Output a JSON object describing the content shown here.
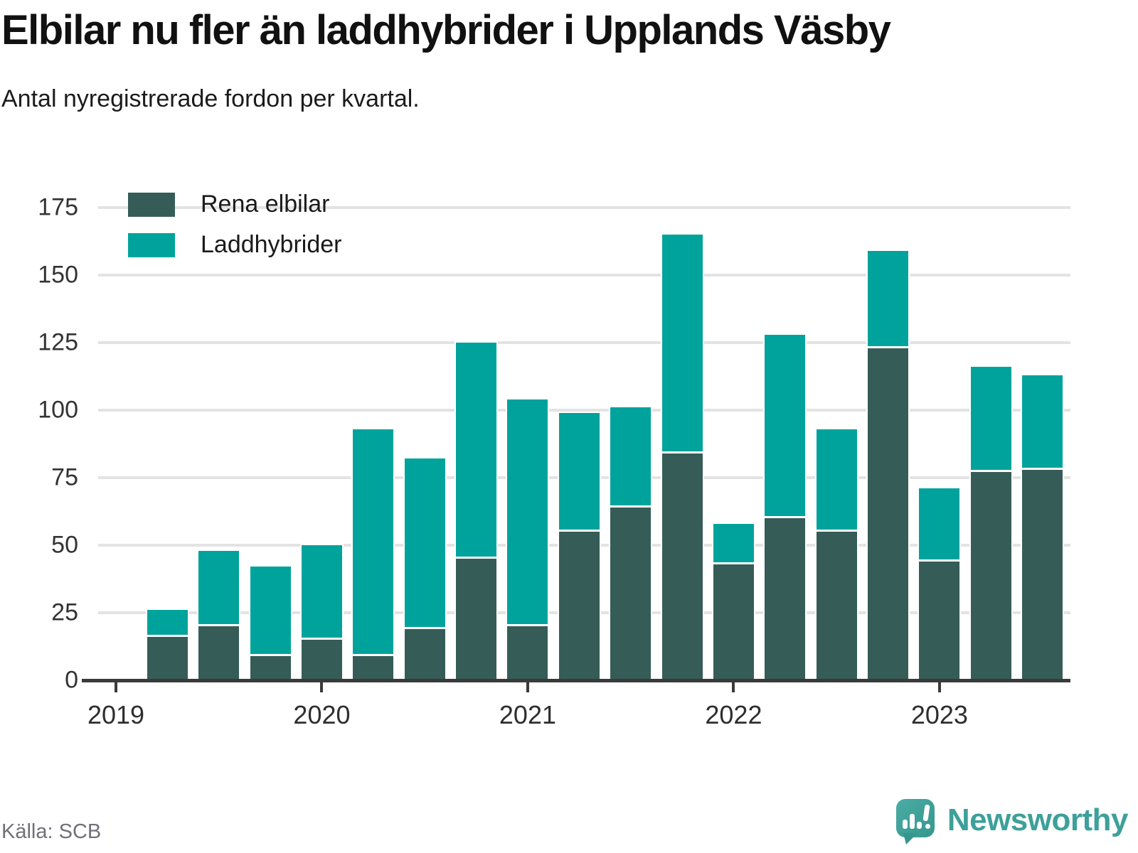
{
  "title": "Elbilar nu fler än laddhybrider i Upplands Väsby",
  "subtitle": "Antal nyregistrerade fordon per kvartal.",
  "source": "Källa: SCB",
  "brand": "Newsworthy",
  "colors": {
    "elbilar": "#365C57",
    "hybrider": "#00A39B",
    "axis": "#3a3a3a",
    "gridline": "#e3e3e3",
    "brand_teal": "#3da09a"
  },
  "legend": {
    "items": [
      {
        "label": "Rena elbilar",
        "color": "#365C57"
      },
      {
        "label": "Laddhybrider",
        "color": "#00A39B"
      }
    ]
  },
  "chart_data": {
    "type": "bar",
    "stacked": true,
    "title": "Elbilar nu fler än laddhybrider i Upplands Väsby",
    "subtitle": "Antal nyregistrerade fordon per kvartal.",
    "xlabel": "",
    "ylabel": "",
    "ylim": [
      0,
      175
    ],
    "yticks": [
      0,
      25,
      50,
      75,
      100,
      125,
      150,
      175
    ],
    "x_tick_labels": [
      "2019",
      "2020",
      "2021",
      "2022",
      "2023"
    ],
    "x_tick_years": [
      2019,
      2020,
      2021,
      2022,
      2023
    ],
    "grid": "horizontal",
    "legend_position": "top-left-inside",
    "categories": [
      "2019 Q2",
      "2019 Q3",
      "2019 Q4",
      "2020 Q1",
      "2020 Q2",
      "2020 Q3",
      "2020 Q4",
      "2021 Q1",
      "2021 Q2",
      "2021 Q3",
      "2021 Q4",
      "2022 Q1",
      "2022 Q2",
      "2022 Q3",
      "2022 Q4",
      "2023 Q1",
      "2023 Q2",
      "2023 Q3"
    ],
    "series": [
      {
        "name": "Rena elbilar",
        "color": "#365C57",
        "values": [
          16,
          20,
          9,
          15,
          9,
          19,
          45,
          20,
          55,
          64,
          84,
          43,
          60,
          55,
          123,
          44,
          77,
          78
        ]
      },
      {
        "name": "Laddhybrider",
        "color": "#00A39B",
        "values": [
          10,
          28,
          33,
          35,
          84,
          63,
          80,
          84,
          44,
          37,
          81,
          15,
          68,
          38,
          36,
          27,
          39,
          35
        ]
      }
    ],
    "totals": [
      26,
      48,
      42,
      50,
      93,
      82,
      125,
      104,
      99,
      101,
      165,
      58,
      128,
      93,
      159,
      71,
      116,
      113
    ]
  }
}
